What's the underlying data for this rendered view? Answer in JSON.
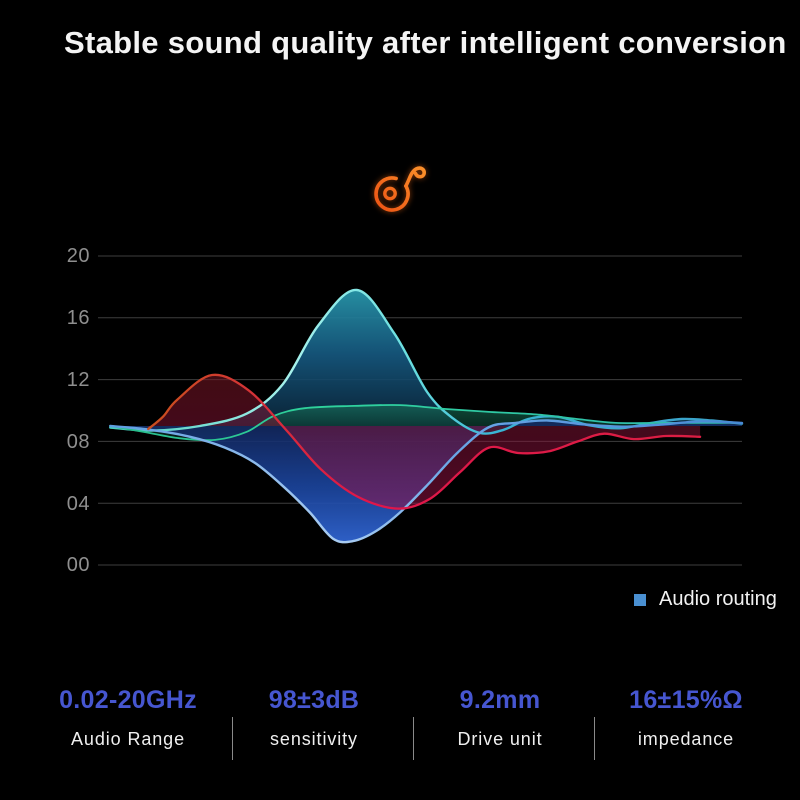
{
  "header": {
    "title": "Stable sound quality after intelligent conversion",
    "icon": "music-note-icon",
    "icon_color_start": "#e8430e",
    "icon_color_end": "#ffa030"
  },
  "chart_data": {
    "type": "area",
    "title": "",
    "grid": true,
    "x_axis": {
      "visible": false
    },
    "y_axis": {
      "range": [
        0,
        20
      ],
      "ticks": [
        {
          "label": "20",
          "value": 20
        },
        {
          "label": "16",
          "value": 16
        },
        {
          "label": "12",
          "value": 12
        },
        {
          "label": "08",
          "value": 8
        },
        {
          "label": "04",
          "value": 4
        },
        {
          "label": "00",
          "value": 0
        }
      ]
    },
    "baseline": 9,
    "legend": {
      "position": "bottom-right",
      "items": [
        {
          "label": "Audio routing",
          "color": "#4a90d2"
        }
      ]
    },
    "series": [
      {
        "name": "cyan-wave",
        "line_width": 2.4,
        "line_stops": [
          {
            "o": 0,
            "c": "#3ec8b8"
          },
          {
            "o": 0.3,
            "c": "#a7f2ec"
          },
          {
            "o": 0.48,
            "c": "#6adfe0"
          },
          {
            "o": 0.62,
            "c": "#38b4d4"
          },
          {
            "o": 1,
            "c": "#3aa0c8"
          }
        ],
        "fill_stops": [
          {
            "o": 0,
            "c": "rgba(40,150,170,0.95)"
          },
          {
            "o": 0.45,
            "c": "rgba(22,90,130,0.90)"
          },
          {
            "o": 1,
            "c": "rgba(10,35,55,0.85)"
          }
        ],
        "points": [
          {
            "x": 1.9,
            "y": 8.9
          },
          {
            "x": 8.4,
            "y": 8.7
          },
          {
            "x": 15.8,
            "y": 9.0
          },
          {
            "x": 23.1,
            "y": 9.8
          },
          {
            "x": 28.7,
            "y": 11.7
          },
          {
            "x": 34.2,
            "y": 15.5
          },
          {
            "x": 40.2,
            "y": 17.8
          },
          {
            "x": 46.0,
            "y": 15.0
          },
          {
            "x": 51.1,
            "y": 11.2
          },
          {
            "x": 55.1,
            "y": 9.5
          },
          {
            "x": 59.3,
            "y": 8.55
          },
          {
            "x": 63.0,
            "y": 8.75
          },
          {
            "x": 66.8,
            "y": 9.45
          },
          {
            "x": 71.3,
            "y": 9.6
          },
          {
            "x": 76.2,
            "y": 9.05
          },
          {
            "x": 81.1,
            "y": 8.85
          },
          {
            "x": 85.9,
            "y": 9.2
          },
          {
            "x": 90.7,
            "y": 9.45
          },
          {
            "x": 95.3,
            "y": 9.35
          },
          {
            "x": 100,
            "y": 9.15
          }
        ]
      },
      {
        "name": "green-wave",
        "line_width": 1.8,
        "line_stops": [
          {
            "o": 0,
            "c": "#27b889"
          },
          {
            "o": 0.35,
            "c": "#2fd39c"
          },
          {
            "o": 1,
            "c": "#2fb8ae"
          }
        ],
        "fill_stops": [
          {
            "o": 0,
            "c": "rgba(24,118,92,0.62)"
          },
          {
            "o": 1,
            "c": "rgba(6,38,30,0.62)"
          }
        ],
        "points": [
          {
            "x": 1.9,
            "y": 9.0
          },
          {
            "x": 7.3,
            "y": 8.6
          },
          {
            "x": 12.7,
            "y": 8.2
          },
          {
            "x": 18.2,
            "y": 8.1
          },
          {
            "x": 23.0,
            "y": 8.6
          },
          {
            "x": 27.3,
            "y": 9.65
          },
          {
            "x": 32.1,
            "y": 10.15
          },
          {
            "x": 39.8,
            "y": 10.3
          },
          {
            "x": 47.0,
            "y": 10.35
          },
          {
            "x": 54.0,
            "y": 10.1
          },
          {
            "x": 61.0,
            "y": 9.9
          },
          {
            "x": 68.0,
            "y": 9.75
          },
          {
            "x": 74.4,
            "y": 9.45
          },
          {
            "x": 80.4,
            "y": 9.2
          },
          {
            "x": 88.0,
            "y": 9.2
          },
          {
            "x": 100,
            "y": 9.2
          }
        ]
      },
      {
        "name": "blue-wave",
        "line_width": 2.4,
        "line_stops": [
          {
            "o": 0,
            "c": "#5a9ae0"
          },
          {
            "o": 0.38,
            "c": "#aacdf2"
          },
          {
            "o": 0.55,
            "c": "#6aa6e6"
          },
          {
            "o": 1,
            "c": "#4888d4"
          }
        ],
        "fill_stops": [
          {
            "o": 0,
            "c": "rgba(18,38,92,0.88)"
          },
          {
            "o": 0.55,
            "c": "rgba(28,70,160,0.90)"
          },
          {
            "o": 1,
            "c": "rgba(48,100,208,0.95)"
          }
        ],
        "points": [
          {
            "x": 1.9,
            "y": 9.0
          },
          {
            "x": 8.1,
            "y": 8.75
          },
          {
            "x": 14.3,
            "y": 8.3
          },
          {
            "x": 19.7,
            "y": 7.6
          },
          {
            "x": 24.4,
            "y": 6.6
          },
          {
            "x": 29.0,
            "y": 5.0
          },
          {
            "x": 32.9,
            "y": 3.4
          },
          {
            "x": 36.5,
            "y": 1.7
          },
          {
            "x": 39.6,
            "y": 1.55
          },
          {
            "x": 43.2,
            "y": 2.2
          },
          {
            "x": 46.9,
            "y": 3.4
          },
          {
            "x": 51.2,
            "y": 5.2
          },
          {
            "x": 55.9,
            "y": 7.3
          },
          {
            "x": 60.6,
            "y": 8.9
          },
          {
            "x": 64.9,
            "y": 9.2
          },
          {
            "x": 69.9,
            "y": 9.35
          },
          {
            "x": 75.6,
            "y": 9.1
          },
          {
            "x": 81.8,
            "y": 8.95
          },
          {
            "x": 87.7,
            "y": 9.1
          },
          {
            "x": 93.8,
            "y": 9.3
          },
          {
            "x": 100,
            "y": 9.2
          }
        ]
      },
      {
        "name": "red-wave",
        "line_width": 2.3,
        "line_stops": [
          {
            "o": 0,
            "c": "#c4581c"
          },
          {
            "o": 0.12,
            "c": "#cc4a22"
          },
          {
            "o": 0.25,
            "c": "#d43038"
          },
          {
            "o": 0.42,
            "c": "#e0164a"
          },
          {
            "o": 1,
            "c": "#da1f42"
          }
        ],
        "fill_stops": [
          {
            "o": 0,
            "c": "rgba(120,22,34,0.55)"
          },
          {
            "o": 0.5,
            "c": "rgba(135,18,58,0.50)"
          },
          {
            "o": 1,
            "c": "rgba(150,16,70,0.55)"
          }
        ],
        "points": [
          {
            "x": 7.8,
            "y": 8.8
          },
          {
            "x": 10.1,
            "y": 9.6
          },
          {
            "x": 12.3,
            "y": 10.7
          },
          {
            "x": 17.7,
            "y": 12.3
          },
          {
            "x": 23.4,
            "y": 11.3
          },
          {
            "x": 29.3,
            "y": 8.7
          },
          {
            "x": 34.6,
            "y": 6.2
          },
          {
            "x": 40.4,
            "y": 4.4
          },
          {
            "x": 46.6,
            "y": 3.65
          },
          {
            "x": 51.6,
            "y": 4.3
          },
          {
            "x": 56.2,
            "y": 6.0
          },
          {
            "x": 60.7,
            "y": 7.6
          },
          {
            "x": 65.2,
            "y": 7.25
          },
          {
            "x": 69.9,
            "y": 7.35
          },
          {
            "x": 74.5,
            "y": 8.0
          },
          {
            "x": 78.6,
            "y": 8.5
          },
          {
            "x": 83.2,
            "y": 8.15
          },
          {
            "x": 88.2,
            "y": 8.35
          },
          {
            "x": 93.5,
            "y": 8.3
          }
        ]
      }
    ]
  },
  "specs": {
    "value_color": "#4656d0",
    "items": [
      {
        "value": "0.02-20GHz",
        "label": "Audio Range"
      },
      {
        "value": "98±3dB",
        "label": "sensitivity"
      },
      {
        "value": "9.2mm",
        "label": "Drive unit"
      },
      {
        "value": "16±15%Ω",
        "label": "impedance"
      }
    ]
  }
}
